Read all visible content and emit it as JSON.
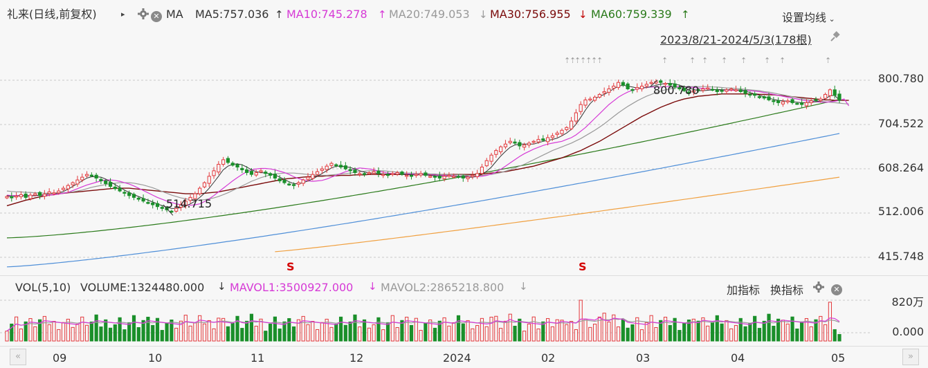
{
  "header": {
    "stock_label": "礼来(日线,前复权)",
    "play_glyph": "▸",
    "ma_label": "MA",
    "ma5": "MA5:757.036",
    "ma10": "MA10:745.278",
    "ma20": "MA20:749.053",
    "ma30": "MA30:756.955",
    "ma60": "MA60:759.339",
    "settings_label": "设置均线",
    "range_label": "2023/8/21-2024/5/3(178根)"
  },
  "volume_header": {
    "vol_label": "VOL(5,10)",
    "volume": "VOLUME:1324480.000",
    "mavol1": "MAVOL1:3500927.000",
    "mavol2": "MAVOL2:2865218.800",
    "add_indicator": "加指标",
    "switch_indicator": "换指标"
  },
  "colors": {
    "up": "#e3393c",
    "down": "#1a8f2a",
    "ma5": "#333333",
    "ma10": "#d63ad6",
    "ma20": "#9a9a9a",
    "ma30": "#7a0a0a",
    "ma60": "#2a7a1a",
    "ma120": "#4f8fd8",
    "ma250": "#f0a040"
  },
  "chart_data": {
    "type": "candlestick",
    "price_axis_ticks": [
      "800.780",
      "704.522",
      "608.264",
      "512.006",
      "415.748"
    ],
    "price_axis_values": [
      800.78,
      704.522,
      608.264,
      512.006,
      415.748
    ],
    "volume_axis_ticks": [
      "820万",
      "0.000"
    ],
    "months": [
      "09",
      "10",
      "11",
      "12",
      "2024",
      "02",
      "03",
      "04",
      "05"
    ],
    "annotations": {
      "max": "800.780",
      "min": "514.715"
    },
    "s_markers": [
      "S",
      "S"
    ],
    "ma_last": {
      "ma5": 757.036,
      "ma10": 745.278,
      "ma20": 749.053,
      "ma30": 756.955,
      "ma60": 759.339
    },
    "last_volume": 1324480,
    "mavol1": 3500927,
    "mavol2": 2865218.8,
    "ma60_range": [
      458,
      759
    ],
    "ma120_range": [
      395,
      685
    ],
    "ma250_range": [
      428,
      590
    ],
    "ma120_start_index": 0,
    "ma250_start_index": 57,
    "closes": [
      548,
      545,
      549,
      552,
      546,
      551,
      554,
      550,
      553,
      558,
      556,
      560,
      566,
      572,
      578,
      584,
      590,
      596,
      593,
      588,
      582,
      576,
      570,
      565,
      560,
      556,
      550,
      546,
      542,
      538,
      534,
      530,
      526,
      522,
      519,
      516,
      522,
      530,
      538,
      546,
      554,
      566,
      578,
      592,
      604,
      618,
      628,
      622,
      616,
      612,
      606,
      600,
      596,
      600,
      604,
      598,
      594,
      588,
      582,
      578,
      574,
      572,
      578,
      584,
      590,
      596,
      602,
      608,
      614,
      620,
      616,
      612,
      608,
      604,
      600,
      598,
      596,
      600,
      602,
      598,
      596,
      594,
      598,
      600,
      596,
      594,
      592,
      596,
      598,
      594,
      592,
      590,
      588,
      592,
      594,
      592,
      590,
      588,
      590,
      594,
      598,
      612,
      626,
      638,
      648,
      656,
      662,
      668,
      664,
      658,
      660,
      664,
      668,
      672,
      670,
      676,
      680,
      686,
      692,
      698,
      712,
      730,
      748,
      758,
      760,
      764,
      770,
      776,
      782,
      788,
      796,
      790,
      782,
      780,
      785,
      788,
      792,
      796,
      798,
      796,
      794,
      790,
      786,
      782,
      778,
      775,
      778,
      780,
      782,
      784,
      780,
      776,
      778,
      780,
      782,
      780,
      776,
      772,
      770,
      768,
      765,
      762,
      758,
      755,
      752,
      754,
      756,
      752,
      750,
      748,
      752,
      756,
      758,
      760,
      770,
      780,
      768,
      757
    ],
    "ma5": [
      550,
      548,
      549,
      550,
      549,
      549,
      550,
      551,
      552,
      554,
      555,
      556,
      559,
      564,
      570,
      576,
      582,
      588,
      591,
      591,
      590,
      586,
      580,
      574,
      568,
      562,
      557,
      552,
      548,
      544,
      540,
      536,
      532,
      528,
      525,
      522,
      522,
      524,
      527,
      532,
      538,
      546,
      555,
      566,
      579,
      592,
      606,
      614,
      618,
      619,
      617,
      612,
      606,
      602,
      600,
      599,
      597,
      595,
      590,
      585,
      580,
      576,
      576,
      578,
      582,
      586,
      592,
      598,
      604,
      610,
      614,
      614,
      613,
      611,
      608,
      604,
      601,
      599,
      599,
      598,
      597,
      597,
      597,
      597,
      597,
      596,
      595,
      595,
      595,
      595,
      594,
      593,
      592,
      592,
      592,
      592,
      591,
      590,
      590,
      590,
      592,
      596,
      603,
      612,
      624,
      636,
      646,
      655,
      660,
      662,
      662,
      662,
      662,
      665,
      668,
      670,
      672,
      675,
      680,
      686,
      694,
      705,
      720,
      736,
      750,
      760,
      766,
      770,
      776,
      782,
      788,
      790,
      788,
      786,
      784,
      784,
      785,
      787,
      790,
      792,
      794,
      794,
      793,
      790,
      787,
      784,
      781,
      778,
      778,
      779,
      780,
      781,
      780,
      780,
      780,
      780,
      779,
      777,
      774,
      771,
      768,
      765,
      762,
      759,
      757,
      756,
      755,
      754,
      753,
      752,
      752,
      753,
      754,
      756,
      760,
      767,
      768,
      757
    ],
    "ma10": [
      551,
      550,
      550,
      550,
      550,
      550,
      550,
      550,
      551,
      551,
      552,
      553,
      555,
      557,
      561,
      565,
      569,
      573,
      576,
      579,
      582,
      584,
      584,
      583,
      581,
      578,
      575,
      571,
      566,
      561,
      556,
      551,
      546,
      542,
      538,
      535,
      532,
      530,
      529,
      529,
      530,
      532,
      537,
      543,
      550,
      558,
      566,
      574,
      582,
      589,
      596,
      602,
      606,
      608,
      609,
      609,
      608,
      606,
      603,
      600,
      596,
      591,
      587,
      584,
      582,
      581,
      582,
      583,
      586,
      590,
      594,
      598,
      602,
      605,
      608,
      610,
      609,
      608,
      606,
      603,
      601,
      599,
      598,
      598,
      597,
      597,
      597,
      596,
      596,
      596,
      595,
      595,
      594,
      594,
      593,
      593,
      592,
      592,
      591,
      591,
      591,
      592,
      594,
      597,
      601,
      607,
      614,
      621,
      628,
      635,
      641,
      646,
      651,
      655,
      659,
      662,
      664,
      666,
      668,
      672,
      676,
      682,
      690,
      698,
      708,
      718,
      728,
      738,
      748,
      756,
      764,
      770,
      775,
      779,
      782,
      784,
      785,
      786,
      786,
      786,
      787,
      787,
      787,
      787,
      787,
      786,
      785,
      784,
      783,
      782,
      781,
      780,
      779,
      779,
      779,
      779,
      779,
      779,
      778,
      777,
      776,
      774,
      772,
      770,
      768,
      766,
      764,
      762,
      760,
      758,
      756,
      755,
      754,
      753,
      753,
      754,
      755,
      757,
      760,
      745
    ],
    "ma20": [
      560,
      559,
      558,
      558,
      557,
      557,
      556,
      556,
      555,
      555,
      555,
      555,
      556,
      557,
      558,
      560,
      562,
      565,
      568,
      570,
      572,
      574,
      576,
      577,
      578,
      578,
      578,
      577,
      575,
      573,
      570,
      567,
      563,
      559,
      555,
      551,
      548,
      545,
      543,
      541,
      540,
      540,
      541,
      543,
      545,
      548,
      552,
      556,
      561,
      566,
      571,
      576,
      581,
      585,
      589,
      592,
      595,
      597,
      598,
      599,
      599,
      599,
      598,
      597,
      596,
      595,
      594,
      594,
      594,
      595,
      596,
      597,
      598,
      599,
      601,
      602,
      603,
      604,
      604,
      604,
      604,
      603,
      602,
      601,
      600,
      599,
      599,
      598,
      598,
      598,
      597,
      597,
      596,
      596,
      596,
      595,
      595,
      595,
      594,
      594,
      594,
      594,
      595,
      596,
      598,
      600,
      603,
      606,
      610,
      614,
      618,
      623,
      628,
      633,
      638,
      643,
      648,
      652,
      656,
      660,
      664,
      669,
      674,
      680,
      686,
      692,
      699,
      706,
      714,
      722,
      730,
      737,
      744,
      750,
      756,
      761,
      766,
      770,
      774,
      777,
      780,
      782,
      784,
      785,
      786,
      787,
      787,
      787,
      787,
      787,
      786,
      786,
      785,
      784,
      784,
      783,
      782,
      781,
      780,
      779,
      778,
      776,
      775,
      773,
      771,
      769,
      767,
      765,
      763,
      761,
      759,
      757,
      756,
      755,
      754,
      753,
      752,
      751,
      750,
      749
    ],
    "ma30": [
      528,
      531,
      534,
      537,
      540,
      542,
      545,
      547,
      549,
      551,
      552,
      554,
      555,
      556,
      557,
      558,
      559,
      560,
      561,
      562,
      563,
      564,
      565,
      566,
      566,
      566,
      566,
      565,
      564,
      563,
      562,
      561,
      560,
      559,
      558,
      557,
      556,
      555,
      554,
      554,
      554,
      554,
      555,
      556,
      557,
      558,
      560,
      562,
      564,
      566,
      568,
      570,
      572,
      574,
      576,
      578,
      580,
      582,
      584,
      586,
      587,
      588,
      589,
      590,
      591,
      591,
      592,
      592,
      593,
      593,
      593,
      594,
      594,
      594,
      595,
      595,
      595,
      596,
      596,
      596,
      596,
      596,
      596,
      596,
      596,
      596,
      596,
      596,
      596,
      596,
      596,
      596,
      596,
      596,
      596,
      596,
      596,
      596,
      596,
      596,
      596,
      597,
      598,
      599,
      600,
      601,
      602,
      604,
      606,
      608,
      610,
      612,
      614,
      617,
      620,
      623,
      626,
      629,
      632,
      636,
      640,
      644,
      648,
      653,
      658,
      663,
      668,
      674,
      680,
      686,
      692,
      698,
      704,
      710,
      716,
      722,
      727,
      732,
      737,
      742,
      746,
      750,
      754,
      757,
      760,
      762,
      764,
      766,
      767,
      768,
      769,
      770,
      771,
      771,
      771,
      771,
      771,
      771,
      771,
      771,
      770,
      770,
      769,
      769,
      768,
      767,
      766,
      765,
      764,
      763,
      762,
      761,
      760,
      759,
      758,
      758,
      757,
      757,
      757,
      757
    ]
  }
}
